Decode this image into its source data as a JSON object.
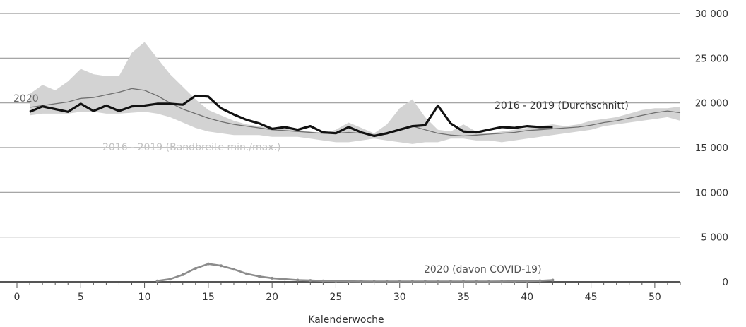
{
  "chart_data": {
    "type": "line",
    "xlabel": "Kalenderwoche",
    "ylabel": "",
    "xlim": [
      0,
      52
    ],
    "ylim": [
      0,
      30000
    ],
    "x_ticks_labeled": [
      0,
      5,
      10,
      15,
      20,
      25,
      30,
      35,
      40,
      45,
      50
    ],
    "y_ticks": [
      0,
      5000,
      10000,
      15000,
      20000,
      25000,
      30000
    ],
    "y_tick_labels": [
      "0",
      "5 000",
      "10 000",
      "15 000",
      "20 000",
      "25 000",
      "30 000"
    ],
    "y_axis_side": "right",
    "grid": "horizontal",
    "colors": {
      "band": "#d3d3d3",
      "avg": "#6f6f6f",
      "current": "#111111",
      "covid": "#8c8c8c",
      "grid": "#9a9a9a",
      "axis": "#555555"
    },
    "annotations": [
      {
        "text": "2020",
        "series": "2020"
      },
      {
        "text": "2016 - 2019 (Durchschnitt)",
        "series": "avg"
      },
      {
        "text": "2016 - 2019 (Bandbreite min./max.)",
        "series": "band"
      },
      {
        "text": "2020 (davon COVID-19)",
        "series": "covid"
      }
    ],
    "band": {
      "x": [
        1,
        2,
        3,
        4,
        5,
        6,
        7,
        8,
        9,
        10,
        11,
        12,
        13,
        14,
        15,
        16,
        17,
        18,
        19,
        20,
        21,
        22,
        23,
        24,
        25,
        26,
        27,
        28,
        29,
        30,
        31,
        32,
        33,
        34,
        35,
        36,
        37,
        38,
        39,
        40,
        41,
        42,
        43,
        44,
        45,
        46,
        47,
        48,
        49,
        50,
        51,
        52
      ],
      "max": [
        21000,
        22000,
        21400,
        22400,
        23800,
        23200,
        23000,
        23000,
        25600,
        26800,
        25000,
        23200,
        21800,
        20400,
        19200,
        18600,
        18000,
        17600,
        17400,
        17200,
        17400,
        17000,
        16800,
        16600,
        17000,
        17800,
        17200,
        16600,
        17600,
        19400,
        20400,
        18400,
        17000,
        16800,
        17600,
        16800,
        16600,
        16800,
        17000,
        17200,
        17400,
        17600,
        17400,
        17600,
        18000,
        18200,
        18400,
        18800,
        19200,
        19400,
        19400,
        19600
      ],
      "min": [
        18600,
        18800,
        18800,
        18800,
        19000,
        19000,
        18800,
        18800,
        18900,
        19000,
        18800,
        18400,
        17800,
        17200,
        16800,
        16600,
        16400,
        16400,
        16400,
        16200,
        16200,
        16200,
        16000,
        15800,
        15600,
        15600,
        15800,
        16000,
        15800,
        15600,
        15400,
        15600,
        15600,
        16000,
        16000,
        15800,
        15800,
        15600,
        15800,
        16000,
        16200,
        16400,
        16600,
        16800,
        17000,
        17400,
        17600,
        17800,
        18000,
        18200,
        18400,
        18000
      ]
    },
    "series": [
      {
        "name": "2016 - 2019 (Durchschnitt)",
        "x": [
          1,
          2,
          3,
          4,
          5,
          6,
          7,
          8,
          9,
          10,
          11,
          12,
          13,
          14,
          15,
          16,
          17,
          18,
          19,
          20,
          21,
          22,
          23,
          24,
          25,
          26,
          27,
          28,
          29,
          30,
          31,
          32,
          33,
          34,
          35,
          36,
          37,
          38,
          39,
          40,
          41,
          42,
          43,
          44,
          45,
          46,
          47,
          48,
          49,
          50,
          51,
          52
        ],
        "values": [
          19500,
          19700,
          19900,
          20100,
          20500,
          20600,
          20900,
          21200,
          21600,
          21400,
          20800,
          20000,
          19300,
          18800,
          18300,
          17900,
          17600,
          17400,
          17200,
          17000,
          16900,
          16800,
          16700,
          16600,
          16600,
          16700,
          16600,
          16400,
          16500,
          17100,
          17400,
          17000,
          16600,
          16400,
          16300,
          16400,
          16500,
          16600,
          16700,
          16900,
          17000,
          17100,
          17200,
          17300,
          17500,
          17800,
          18000,
          18300,
          18600,
          18900,
          19100,
          18900
        ]
      },
      {
        "name": "2020",
        "x": [
          1,
          2,
          3,
          4,
          5,
          6,
          7,
          8,
          9,
          10,
          11,
          12,
          13,
          14,
          15,
          16,
          17,
          18,
          19,
          20,
          21,
          22,
          23,
          24,
          25,
          26,
          27,
          28,
          29,
          30,
          31,
          32,
          33,
          34,
          35,
          36,
          37,
          38,
          39,
          40,
          41,
          42
        ],
        "values": [
          19000,
          19600,
          19300,
          19000,
          19900,
          19100,
          19700,
          19100,
          19600,
          19700,
          19900,
          19900,
          19800,
          20800,
          20700,
          19400,
          18700,
          18100,
          17700,
          17100,
          17300,
          17000,
          17400,
          16700,
          16600,
          17300,
          16700,
          16300,
          16600,
          17000,
          17400,
          17500,
          19700,
          17700,
          16800,
          16700,
          17000,
          17300,
          17200,
          17400,
          17300,
          17300
        ]
      },
      {
        "name": "2020 (davon COVID-19)",
        "x": [
          11,
          12,
          13,
          14,
          15,
          16,
          17,
          18,
          19,
          20,
          21,
          22,
          23,
          24,
          25,
          26,
          27,
          28,
          29,
          30,
          31,
          32,
          33,
          34,
          35,
          36,
          37,
          38,
          39,
          40,
          41,
          42
        ],
        "values": [
          100,
          300,
          800,
          1500,
          2000,
          1800,
          1400,
          900,
          600,
          400,
          300,
          200,
          150,
          100,
          80,
          60,
          50,
          40,
          40,
          40,
          40,
          40,
          40,
          40,
          40,
          40,
          40,
          50,
          60,
          80,
          120,
          200
        ]
      }
    ]
  }
}
